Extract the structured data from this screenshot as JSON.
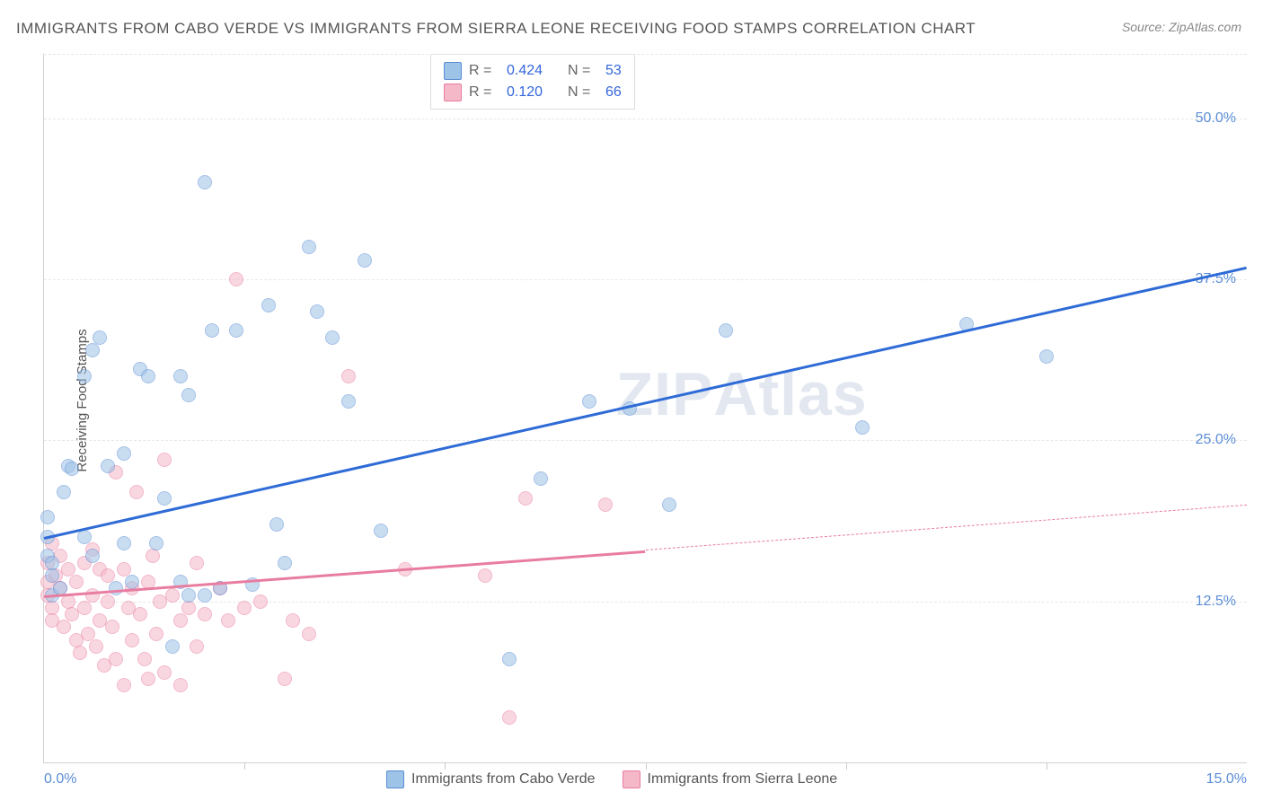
{
  "title": "IMMIGRANTS FROM CABO VERDE VS IMMIGRANTS FROM SIERRA LEONE RECEIVING FOOD STAMPS CORRELATION CHART",
  "source": "Source: ZipAtlas.com",
  "y_axis_label": "Receiving Food Stamps",
  "watermark": {
    "bold": "ZIP",
    "rest": "Atlas"
  },
  "chart": {
    "type": "scatter",
    "xlim": [
      0,
      15
    ],
    "ylim": [
      0,
      55
    ],
    "y_gridlines": [
      12.5,
      25.0,
      37.5,
      50.0
    ],
    "y_tick_labels": [
      "12.5%",
      "25.0%",
      "37.5%",
      "50.0%"
    ],
    "x_ticks": [
      2.5,
      5.0,
      7.5,
      10.0,
      12.5
    ],
    "x_tick_labels": {
      "left": "0.0%",
      "right": "15.0%"
    },
    "background_color": "#ffffff",
    "grid_color": "#e8e8e8",
    "point_radius": 8,
    "point_opacity": 0.55
  },
  "series_a": {
    "label": "Immigrants from Cabo Verde",
    "color_fill": "#9dc3e6",
    "color_stroke": "#5b8dd6",
    "r_value": "0.424",
    "n_value": "53",
    "trend": {
      "x1": 0,
      "y1": 17.5,
      "x2": 15,
      "y2": 38.5,
      "color": "#2e6bd6",
      "width": 3,
      "dash": false
    },
    "points": [
      [
        0.05,
        17.5
      ],
      [
        0.05,
        19.0
      ],
      [
        0.05,
        16.0
      ],
      [
        0.1,
        15.5
      ],
      [
        0.1,
        14.5
      ],
      [
        0.1,
        13.0
      ],
      [
        0.2,
        13.5
      ],
      [
        0.25,
        21.0
      ],
      [
        0.3,
        23.0
      ],
      [
        0.35,
        22.8
      ],
      [
        0.5,
        30.0
      ],
      [
        0.5,
        17.5
      ],
      [
        0.6,
        16.0
      ],
      [
        0.6,
        32.0
      ],
      [
        0.7,
        33.0
      ],
      [
        0.8,
        23.0
      ],
      [
        0.9,
        13.5
      ],
      [
        1.0,
        17.0
      ],
      [
        1.0,
        24.0
      ],
      [
        1.1,
        14.0
      ],
      [
        1.2,
        30.5
      ],
      [
        1.3,
        30.0
      ],
      [
        1.4,
        17.0
      ],
      [
        1.5,
        20.5
      ],
      [
        1.6,
        9.0
      ],
      [
        1.7,
        30.0
      ],
      [
        1.7,
        14.0
      ],
      [
        1.8,
        28.5
      ],
      [
        1.8,
        13.0
      ],
      [
        2.0,
        13.0
      ],
      [
        2.0,
        45.0
      ],
      [
        2.1,
        33.5
      ],
      [
        2.2,
        13.5
      ],
      [
        2.4,
        33.5
      ],
      [
        2.6,
        13.8
      ],
      [
        2.8,
        35.5
      ],
      [
        2.9,
        18.5
      ],
      [
        3.0,
        15.5
      ],
      [
        3.3,
        40.0
      ],
      [
        3.4,
        35.0
      ],
      [
        3.6,
        33.0
      ],
      [
        3.8,
        28.0
      ],
      [
        4.0,
        39.0
      ],
      [
        4.2,
        18.0
      ],
      [
        5.8,
        8.0
      ],
      [
        6.2,
        22.0
      ],
      [
        6.8,
        28.0
      ],
      [
        7.3,
        27.5
      ],
      [
        7.8,
        20.0
      ],
      [
        8.5,
        33.5
      ],
      [
        10.2,
        26.0
      ],
      [
        11.5,
        34.0
      ],
      [
        12.5,
        31.5
      ]
    ]
  },
  "series_b": {
    "label": "Immigrants from Sierra Leone",
    "color_fill": "#f5b8c8",
    "color_stroke": "#e87da0",
    "r_value": "0.120",
    "n_value": "66",
    "trend_solid": {
      "x1": 0,
      "y1": 13.0,
      "x2": 7.5,
      "y2": 16.5,
      "color": "#e87da0",
      "width": 2.5,
      "dash": false
    },
    "trend_dash": {
      "x1": 7.5,
      "y1": 16.5,
      "x2": 15,
      "y2": 20.0,
      "color": "#e87da0",
      "width": 1.2,
      "dash": true
    },
    "points": [
      [
        0.05,
        15.5
      ],
      [
        0.05,
        14.0
      ],
      [
        0.05,
        13.0
      ],
      [
        0.1,
        17.0
      ],
      [
        0.1,
        12.0
      ],
      [
        0.1,
        11.0
      ],
      [
        0.15,
        14.5
      ],
      [
        0.2,
        16.0
      ],
      [
        0.2,
        13.5
      ],
      [
        0.25,
        10.5
      ],
      [
        0.3,
        15.0
      ],
      [
        0.3,
        12.5
      ],
      [
        0.35,
        11.5
      ],
      [
        0.4,
        14.0
      ],
      [
        0.4,
        9.5
      ],
      [
        0.45,
        8.5
      ],
      [
        0.5,
        15.5
      ],
      [
        0.5,
        12.0
      ],
      [
        0.55,
        10.0
      ],
      [
        0.6,
        16.5
      ],
      [
        0.6,
        13.0
      ],
      [
        0.65,
        9.0
      ],
      [
        0.7,
        11.0
      ],
      [
        0.7,
        15.0
      ],
      [
        0.75,
        7.5
      ],
      [
        0.8,
        12.5
      ],
      [
        0.8,
        14.5
      ],
      [
        0.85,
        10.5
      ],
      [
        0.9,
        8.0
      ],
      [
        0.9,
        22.5
      ],
      [
        1.0,
        15.0
      ],
      [
        1.0,
        6.0
      ],
      [
        1.05,
        12.0
      ],
      [
        1.1,
        13.5
      ],
      [
        1.1,
        9.5
      ],
      [
        1.15,
        21.0
      ],
      [
        1.2,
        11.5
      ],
      [
        1.25,
        8.0
      ],
      [
        1.3,
        14.0
      ],
      [
        1.3,
        6.5
      ],
      [
        1.35,
        16.0
      ],
      [
        1.4,
        10.0
      ],
      [
        1.45,
        12.5
      ],
      [
        1.5,
        7.0
      ],
      [
        1.5,
        23.5
      ],
      [
        1.6,
        13.0
      ],
      [
        1.7,
        11.0
      ],
      [
        1.7,
        6.0
      ],
      [
        1.8,
        12.0
      ],
      [
        1.9,
        9.0
      ],
      [
        1.9,
        15.5
      ],
      [
        2.0,
        11.5
      ],
      [
        2.2,
        13.5
      ],
      [
        2.3,
        11.0
      ],
      [
        2.4,
        37.5
      ],
      [
        2.5,
        12.0
      ],
      [
        2.7,
        12.5
      ],
      [
        3.0,
        6.5
      ],
      [
        3.1,
        11.0
      ],
      [
        3.3,
        10.0
      ],
      [
        3.8,
        30.0
      ],
      [
        4.5,
        15.0
      ],
      [
        5.5,
        14.5
      ],
      [
        5.8,
        3.5
      ],
      [
        6.0,
        20.5
      ],
      [
        7.0,
        20.0
      ]
    ]
  },
  "legend_top": {
    "r_label": "R =",
    "n_label": "N ="
  },
  "legend_bottom_labels": {
    "a": "Immigrants from Cabo Verde",
    "b": "Immigrants from Sierra Leone"
  }
}
